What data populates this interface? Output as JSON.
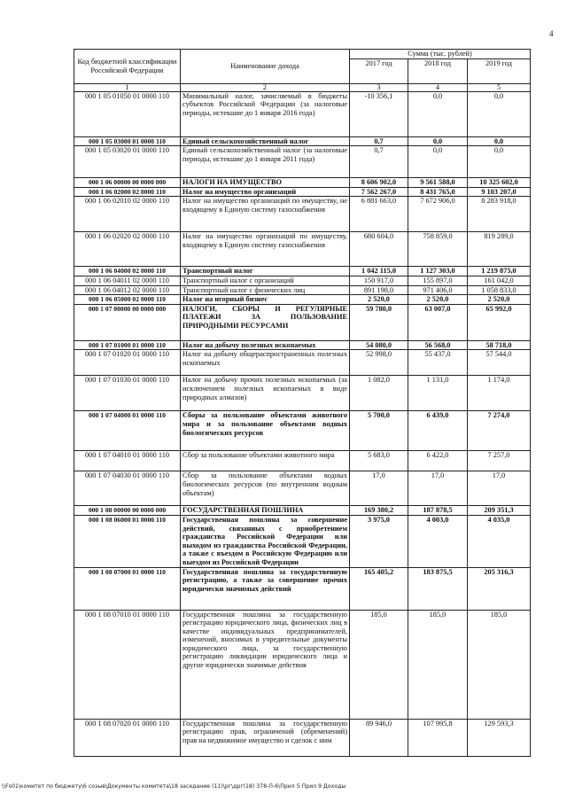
{
  "page_number": "4",
  "header": {
    "code_col": "Код бюджетной классификации Российской Федерации",
    "name_col": "Наименование дохода",
    "sum_col": "Сумма (тыс. рублей)",
    "years": [
      "2017 год",
      "2018 год",
      "2019 год"
    ],
    "index": [
      "1",
      "2",
      "3",
      "4",
      "5"
    ]
  },
  "rows": [
    {
      "code": "000 1 05 01050 01 0000 110",
      "name": "Минимальный налог, зачисляемый в бюджеты субъектов Российской Федерации (за налоговые периоды, истекшие до 1 января 2016 года)",
      "v2017": "-10 356,1",
      "v2018": "0,0",
      "v2019": "0,0",
      "bold": false
    },
    {
      "code": "000 1 05 03000 01 0000 110",
      "name": "Единый сельскохозяйственный налог",
      "v2017": "0,7",
      "v2018": "0,0",
      "v2019": "0,0",
      "bold": true
    },
    {
      "code": "000 1 05 03020 01 0000 110",
      "name": "Единый сельскохозяйственный налог (за налоговые периоды, истекшие до 1 января 2011 года)",
      "v2017": "0,7",
      "v2018": "0,0",
      "v2019": "0,0",
      "bold": false
    },
    {
      "code": "000 1 06 00000 00 0000 000",
      "name": "НАЛОГИ НА ИМУЩЕСТВО",
      "v2017": "8 606 902,0",
      "v2018": "9 561 588,0",
      "v2019": "10 325 602,0",
      "bold": true
    },
    {
      "code": "000 1 06 02000 02 0000 110",
      "name": "Налог на имущество организаций",
      "v2017": "7 562 267,0",
      "v2018": "8 431 765,0",
      "v2019": "9 103 207,0",
      "bold": true
    },
    {
      "code": "000 1 06 02010 02 0000 110",
      "name": "Налог на имущество организаций по имуществу, не входящему в Единую систему газоснабжения",
      "v2017": "6 881 663,0",
      "v2018": "7 672 906,0",
      "v2019": "8 283 918,0",
      "bold": false
    },
    {
      "code": "000 1 06 02020 02 0000 110",
      "name": "Налог на имущество организаций по имуществу, входящему в Единую систему газоснабжения",
      "v2017": "680 604,0",
      "v2018": "758 859,0",
      "v2019": "819 289,0",
      "bold": false
    },
    {
      "code": "000 1 06 04000 02 0000 110",
      "name": "Транспортный налог",
      "v2017": "1 042 115,0",
      "v2018": "1 127 303,0",
      "v2019": "1 219 875,0",
      "bold": true
    },
    {
      "code": "000 1 06 04011 02 0000 110",
      "name": "Транспортный налог с организаций",
      "v2017": "150 917,0",
      "v2018": "155 897,0",
      "v2019": "161 042,0",
      "bold": false
    },
    {
      "code": "000 1 06 04012 02 0000 110",
      "name": "Транспортный налог с физических лиц",
      "v2017": "891 198,0",
      "v2018": "971 406,0",
      "v2019": "1 058 833,0",
      "bold": false
    },
    {
      "code": "000 1 06 05000 02 0000 110",
      "name": "Налог на игорный бизнес",
      "v2017": "2 520,0",
      "v2018": "2 520,0",
      "v2019": "2 520,0",
      "bold": true
    },
    {
      "code": "000 1 07 00000 00 0000 000",
      "name": "НАЛОГИ, СБОРЫ И РЕГУЛЯРНЫЕ ПЛАТЕЖИ ЗА ПОЛЬЗОВАНИЕ ПРИРОДНЫМИ РЕСУРСАМИ",
      "v2017": "59 780,0",
      "v2018": "63 007,0",
      "v2019": "65 992,0",
      "bold": true
    },
    {
      "code": "000 1 07 01000 01 0000 110",
      "name": "Налог на добычу полезных ископаемых",
      "v2017": "54 080,0",
      "v2018": "56 568,0",
      "v2019": "58 718,0",
      "bold": true
    },
    {
      "code": "000 1 07 01020 01 0000 110",
      "name": "Налог на добычу общераспространенных полезных ископаемых",
      "v2017": "52 998,0",
      "v2018": "55 437,0",
      "v2019": "57 544,0",
      "bold": false
    },
    {
      "code": "000 1 07 01030 01 0000 110",
      "name": "Налог на добычу прочих полезных ископаемых (за исключением полезных ископаемых в виде природных алмазов)",
      "v2017": "1 082,0",
      "v2018": "1 131,0",
      "v2019": "1 174,0",
      "bold": false
    },
    {
      "code": "000 1 07 04000 01 0000 110",
      "name": "Сборы за пользование объектами животного мира и за пользование объектами водных биологических ресурсов",
      "v2017": "5 700,0",
      "v2018": "6 439,0",
      "v2019": "7 274,0",
      "bold": true
    },
    {
      "code": "000 1 07 04010 01 0000 110",
      "name": "Сбор за пользование объектами животного мира",
      "v2017": "5 683,0",
      "v2018": "6 422,0",
      "v2019": "7 257,0",
      "bold": false
    },
    {
      "code": "000 1 07 04030 01 0000 110",
      "name": "Сбор за пользование объектами водных биологических ресурсов (по внутренним водным объектам)",
      "v2017": "17,0",
      "v2018": "17,0",
      "v2019": "17,0",
      "bold": false
    },
    {
      "code": "000 1 08 00000 00 0000 000",
      "name": "ГОСУДАРСТВЕННАЯ ПОШЛИНА",
      "v2017": "169 380,2",
      "v2018": "187 878,5",
      "v2019": "209 351,3",
      "bold": true
    },
    {
      "code": "000 1 08 06000 01 0000 110",
      "name": "Государственная пошлина за совершение действий, связанных с приобретением гражданства Российской Федерации или выходом из гражданства Российской Федерации, а также с въездом в Российскую Федерацию или выездом из Российской Федерации",
      "v2017": "3 975,0",
      "v2018": "4 003,0",
      "v2019": "4 035,0",
      "bold": true
    },
    {
      "code": "000 1 08 07000 01 0000 110",
      "name": "Государственная пошлина за государственную регистрацию, а также за совершение прочих юридически значимых действий",
      "v2017": "165 405,2",
      "v2018": "183 875,5",
      "v2019": "205 316,3",
      "bold": true
    },
    {
      "code": "000 1 08 07010 01 0000 110",
      "name": "Государственная пошлина за государственную регистрацию юридического лица, физических лиц в качестве индивидуальных предпринимателей, изменений, вносимых в учредительные документы юридического лица, за государственную регистрацию ликвидации юридического лица и другие юридически значимые действия",
      "v2017": "185,0",
      "v2018": "185,0",
      "v2019": "185,0",
      "bold": false
    },
    {
      "code": "000 1 08 07020 01 0000 110",
      "name": "Государственная пошлина за государственную регистрацию прав, ограничений (обременений) прав на недвижимое имущество и сделок с ним",
      "v2017": "89 946,0",
      "v2018": "107 995,8",
      "v2019": "129 593,3",
      "bold": false
    }
  ],
  "footer": "\\\\Fs01\\комитет по бюджету\\6 созыв\\Документы комитета\\18 заседание (11)\\рг\\дрг(18) 378-П-6\\Прил 5 Прил 9  Доходы"
}
